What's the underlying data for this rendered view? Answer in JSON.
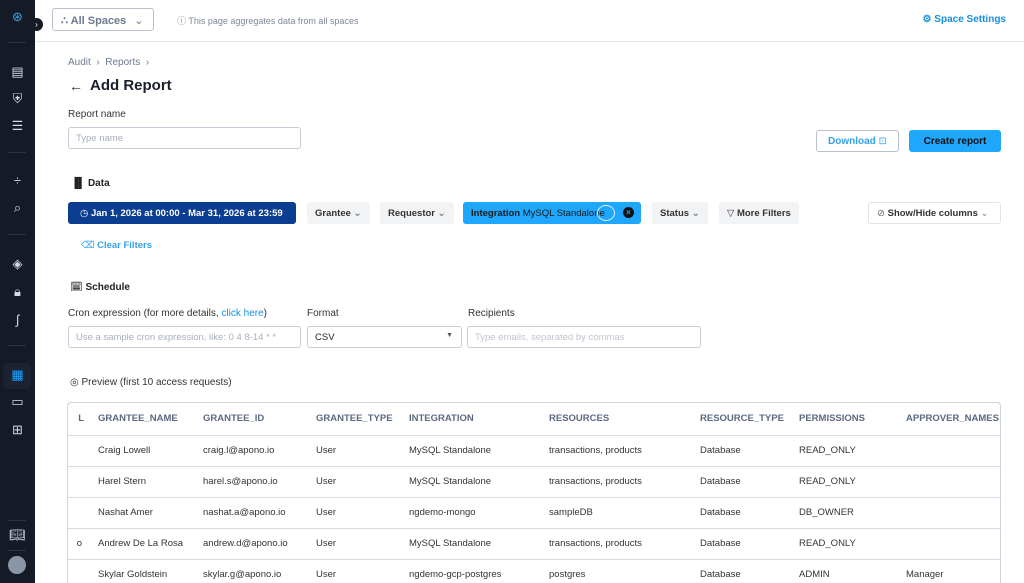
{
  "topbar": {
    "spaces_label": "All Spaces",
    "info_text": "This page aggregates data from all spaces",
    "settings_label": "Space Settings"
  },
  "breadcrumb": [
    "Audit",
    "Reports"
  ],
  "page": {
    "title": "Add Report",
    "report_name_label": "Report name",
    "report_name_placeholder": "Type name",
    "download_label": "Download",
    "create_label": "Create report"
  },
  "data_section": {
    "title": "Data",
    "date_range": "Jan 1, 2026 at 00:00 - Mar 31, 2026 at 23:59",
    "filters": {
      "grantee": "Grantee",
      "requestor": "Requestor",
      "integration_key": "Integration",
      "integration_value": "MySQL Standalone",
      "status": "Status",
      "more": "More Filters"
    },
    "show_hide": "Show/Hide columns",
    "clear_filters": "Clear Filters"
  },
  "schedule": {
    "title": "Schedule",
    "cron_label": "Cron expression (for more details, ",
    "cron_link": "click here",
    "cron_label_end": ")",
    "cron_placeholder": "Use a sample cron expression, like: 0 4 8-14 * *",
    "format_label": "Format",
    "format_value": "CSV",
    "recipients_label": "Recipients",
    "recipients_placeholder": "Type emails, separated by commas"
  },
  "preview": {
    "title": "Preview (first 10 access requests)",
    "partial_header": "L",
    "columns": [
      "GRANTEE_NAME",
      "GRANTEE_ID",
      "GRANTEE_TYPE",
      "INTEGRATION",
      "RESOURCES",
      "RESOURCE_TYPE",
      "PERMISSIONS",
      "APPROVER_NAMES"
    ],
    "rows": [
      {
        "partial": "",
        "cells": [
          "Craig Lowell",
          "craig.l@apono.io",
          "User",
          "MySQL Standalone",
          "transactions, products",
          "Database",
          "READ_ONLY",
          ""
        ]
      },
      {
        "partial": "",
        "cells": [
          "Harel Stern",
          "harel.s@apono.io",
          "User",
          "MySQL Standalone",
          "transactions, products",
          "Database",
          "READ_ONLY",
          ""
        ]
      },
      {
        "partial": "",
        "cells": [
          "Nashat Amer",
          "nashat.a@apono.io",
          "User",
          "ngdemo-mongo",
          "sampleDB",
          "Database",
          "DB_OWNER",
          ""
        ]
      },
      {
        "partial": "o",
        "cells": [
          "Andrew De La Rosa",
          "andrew.d@apono.io",
          "User",
          "MySQL Standalone",
          "transactions, products",
          "Database",
          "READ_ONLY",
          ""
        ]
      },
      {
        "partial": "",
        "cells": [
          "Skylar Goldstein",
          "skylar.g@apono.io",
          "User",
          "ngdemo-gcp-postgres",
          "postgres",
          "Database",
          "ADMIN",
          "Manager"
        ]
      }
    ]
  },
  "colors": {
    "sidebar": "#141a26",
    "accent": "#1ea7fd",
    "date_chip": "#0b3d91",
    "link": "#1590e0"
  }
}
